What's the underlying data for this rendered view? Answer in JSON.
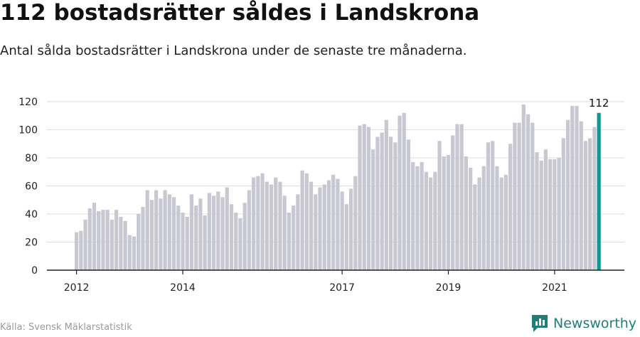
{
  "header": {
    "title": "112 bostadsrätter såldes i Landskrona",
    "subtitle": "Antal sålda bostadsrätter i Landskrona under de senaste tre månaderna."
  },
  "footer": {
    "source": "Källa: Svensk Mäklarstatistik",
    "brand": "Newsworthy"
  },
  "colors": {
    "bar": "#c8c8d3",
    "highlight": "#10958f",
    "grid": "#dddddd",
    "brand": "#1f7f78"
  },
  "chart_data": {
    "type": "bar",
    "title": "112 bostadsrätter såldes i Landskrona",
    "subtitle": "Antal sålda bostadsrätter i Landskrona under de senaste tre månaderna.",
    "xlabel": "",
    "ylabel": "",
    "ylim": [
      0,
      120
    ],
    "yticks": [
      0,
      20,
      40,
      60,
      80,
      100,
      120
    ],
    "grid": true,
    "x_tick_labels": [
      {
        "label": "2012",
        "index": 0
      },
      {
        "label": "2014",
        "index": 24
      },
      {
        "label": "2017",
        "index": 60
      },
      {
        "label": "2019",
        "index": 84
      },
      {
        "label": "2021",
        "index": 108
      }
    ],
    "highlight_label": "112",
    "values": [
      27,
      28,
      36,
      44,
      48,
      42,
      43,
      43,
      36,
      43,
      38,
      35,
      25,
      24,
      40,
      45,
      57,
      50,
      57,
      51,
      57,
      54,
      52,
      46,
      41,
      38,
      54,
      46,
      51,
      39,
      55,
      53,
      56,
      52,
      59,
      47,
      41,
      37,
      48,
      57,
      66,
      67,
      69,
      63,
      61,
      66,
      63,
      53,
      41,
      46,
      54,
      71,
      69,
      63,
      54,
      59,
      61,
      64,
      68,
      65,
      56,
      47,
      58,
      67,
      103,
      104,
      102,
      86,
      95,
      98,
      107,
      95,
      91,
      110,
      112,
      93,
      77,
      74,
      77,
      70,
      66,
      70,
      92,
      81,
      82,
      96,
      104,
      104,
      81,
      73,
      61,
      66,
      74,
      91,
      92,
      74,
      66,
      68,
      90,
      105,
      105,
      118,
      111,
      105,
      84,
      78,
      86,
      79,
      79,
      80,
      94,
      107,
      117,
      117,
      106,
      92,
      94,
      102,
      112
    ]
  }
}
